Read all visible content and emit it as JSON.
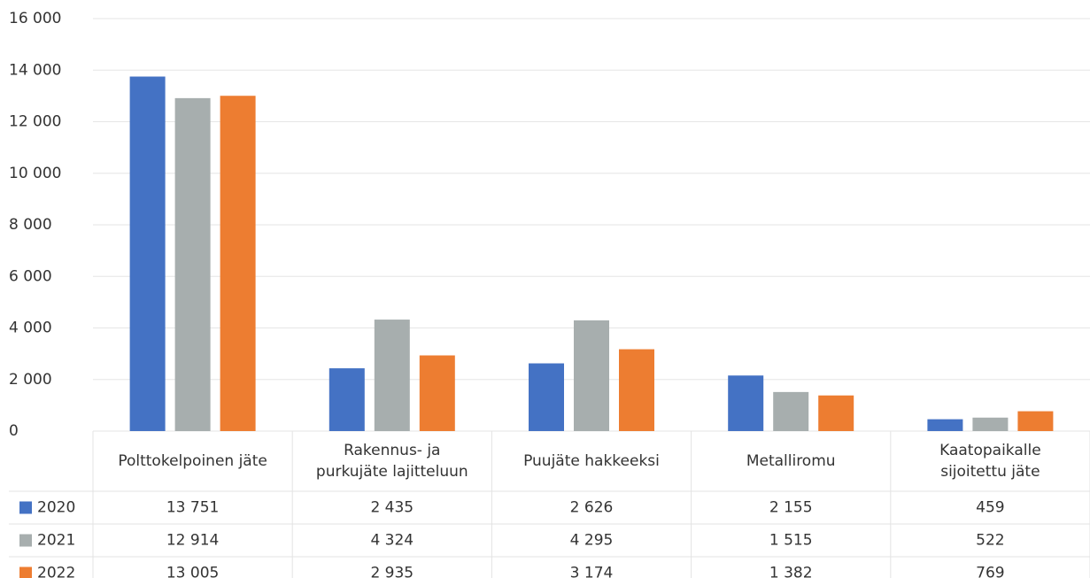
{
  "chart_data": {
    "type": "bar",
    "categories": [
      "Polttokelpoinen jäte",
      "Rakennus- ja\npurkujäte lajitteluun",
      "Puujäte hakkeeksi",
      "Metalliromu",
      "Kaatopaikalle\nsijoitettu jäte"
    ],
    "series": [
      {
        "name": "2020",
        "color": "#4472c4",
        "values": [
          13751,
          2435,
          2626,
          2155,
          459
        ],
        "value_labels": [
          "13 751",
          "2 435",
          "2 626",
          "2 155",
          "459"
        ]
      },
      {
        "name": "2021",
        "color": "#a7aeae",
        "values": [
          12914,
          4324,
          4295,
          1515,
          522
        ],
        "value_labels": [
          "12 914",
          "4 324",
          "4 295",
          "1 515",
          "522"
        ]
      },
      {
        "name": "2022",
        "color": "#ed7d31",
        "values": [
          13005,
          2935,
          3174,
          1382,
          769
        ],
        "value_labels": [
          "13 005",
          "2 935",
          "3 174",
          "1 382",
          "769"
        ]
      }
    ],
    "ylim": [
      0,
      16000
    ],
    "yticks": [
      0,
      {
        "value": 2000,
        "label": "2 000"
      },
      {
        "value": 4000,
        "label": "4 000"
      },
      {
        "value": 6000,
        "label": "6 000"
      },
      {
        "value": 8000,
        "label": "8 000"
      },
      {
        "value": 10000,
        "label": "10 000"
      },
      {
        "value": 12000,
        "label": "12 000"
      },
      {
        "value": 14000,
        "label": "14 000"
      },
      {
        "value": 16000,
        "label": "16 000"
      }
    ],
    "grid": true
  }
}
